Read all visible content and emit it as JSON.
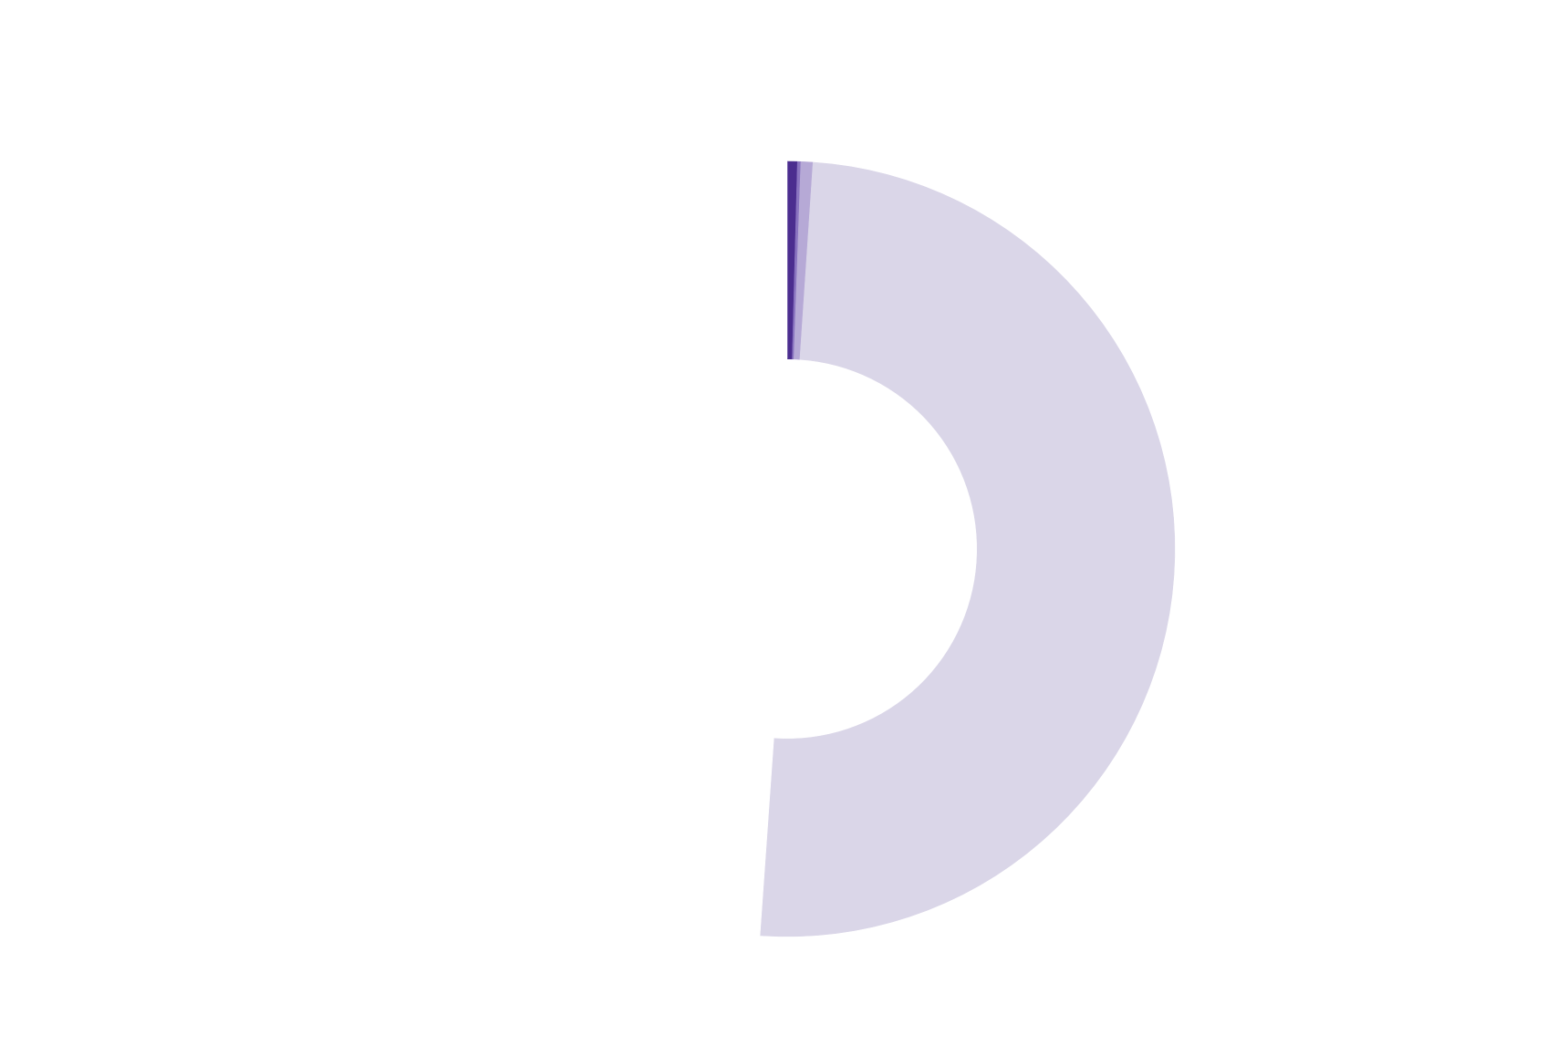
{
  "chart_data": {
    "type": "donut",
    "values": [
      0.42,
      0.14,
      0.5,
      50.06,
      48.88
    ],
    "colors": [
      "#4b2d8f",
      "#8a74c0",
      "#b6a9d6",
      "#dad6e8",
      "#ffffff"
    ],
    "start_angle": 0,
    "direction": "clockwise",
    "hole": 0.49
  }
}
